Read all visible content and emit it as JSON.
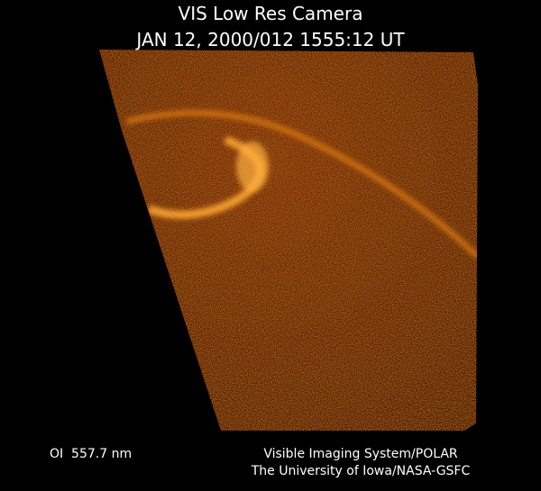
{
  "header": {
    "title": "VIS Low Res Camera",
    "subtitle": "JAN 12, 2000/012 1555:12 UT"
  },
  "footer": {
    "filter": "OI  557.7 nm",
    "instrument": "Visible Imaging System/POLAR",
    "institution": "The University of Iowa/NASA-GSFC"
  }
}
